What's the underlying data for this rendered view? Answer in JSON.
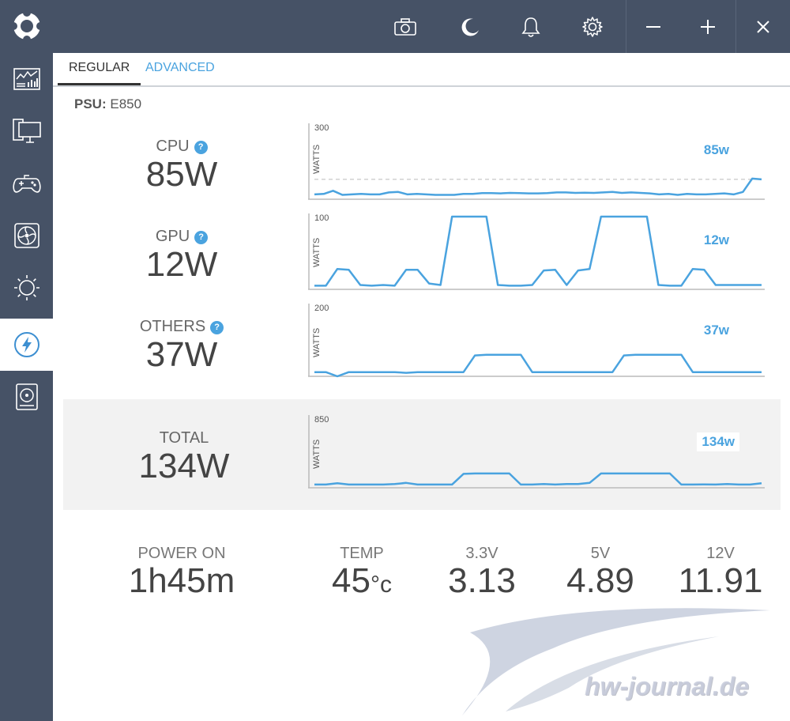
{
  "tabs": [
    {
      "label": "REGULAR",
      "active": true
    },
    {
      "label": "ADVANCED",
      "active": false
    }
  ],
  "psu": {
    "label": "PSU:",
    "model": "E850"
  },
  "metrics": [
    {
      "label": "CPU",
      "value": "85W",
      "help": "?",
      "chart_max": "300",
      "unit": "WATTS",
      "current": "85w"
    },
    {
      "label": "GPU",
      "value": "12W",
      "help": "?",
      "chart_max": "100",
      "unit": "WATTS",
      "current": "12w"
    },
    {
      "label": "OTHERS",
      "value": "37W",
      "help": "?",
      "chart_max": "200",
      "unit": "WATTS",
      "current": "37w"
    }
  ],
  "total": {
    "label": "TOTAL",
    "value": "134W",
    "chart_max": "850",
    "unit": "WATTS",
    "current": "134w"
  },
  "stats": [
    {
      "label": "POWER ON",
      "value": "1h45m"
    },
    {
      "label": "TEMP",
      "value": "45",
      "unit": "°c"
    },
    {
      "label": "3.3V",
      "value": "3.13"
    },
    {
      "label": "5V",
      "value": "4.89"
    },
    {
      "label": "12V",
      "value": "11.91"
    }
  ],
  "watermark": "hw-journal.de",
  "colors": {
    "accent": "#4aa3df",
    "sidebar": "#465266",
    "line": "#4aa3df"
  },
  "icons": {
    "top": [
      "camera-icon",
      "moon-icon",
      "bell-icon",
      "gear-icon"
    ],
    "window": [
      "minimize-icon",
      "maximize-icon",
      "close-icon"
    ],
    "sidebar": [
      "dashboard-icon",
      "monitor-icon",
      "gamepad-icon",
      "fan-icon",
      "brightness-icon",
      "power-icon",
      "storage-icon"
    ]
  },
  "chart_data": [
    {
      "type": "line",
      "name": "CPU",
      "ylim": [
        0,
        300
      ],
      "ylabel": "WATTS",
      "values": [
        20,
        22,
        35,
        18,
        20,
        22,
        20,
        20,
        28,
        30,
        20,
        22,
        20,
        18,
        18,
        18,
        22,
        22,
        25,
        25,
        24,
        26,
        25,
        24,
        24,
        25,
        28,
        28,
        26,
        27,
        26,
        28,
        30,
        26,
        28,
        26,
        24,
        20,
        22,
        18,
        22,
        20,
        20,
        22,
        24,
        20,
        30,
        85,
        82
      ]
    },
    {
      "type": "line",
      "name": "GPU",
      "ylim": [
        0,
        100
      ],
      "ylabel": "WATTS",
      "values": [
        5,
        5,
        28,
        27,
        6,
        5,
        6,
        5,
        27,
        27,
        8,
        6,
        100,
        100,
        100,
        100,
        6,
        5,
        5,
        6,
        26,
        27,
        6,
        26,
        28,
        100,
        100,
        100,
        100,
        100,
        6,
        5,
        5,
        28,
        27,
        6,
        6,
        6,
        6,
        6
      ]
    },
    {
      "type": "line",
      "name": "OTHERS",
      "ylim": [
        0,
        200
      ],
      "ylabel": "WATTS",
      "values": [
        12,
        12,
        0,
        12,
        12,
        12,
        12,
        12,
        10,
        12,
        12,
        12,
        12,
        12,
        60,
        62,
        62,
        62,
        62,
        12,
        12,
        12,
        12,
        12,
        12,
        12,
        12,
        60,
        62,
        62,
        62,
        62,
        62,
        12,
        12,
        12,
        12,
        12,
        12,
        12
      ]
    },
    {
      "type": "line",
      "name": "TOTAL",
      "ylim": [
        0,
        850
      ],
      "ylabel": "WATTS",
      "values": [
        40,
        40,
        55,
        40,
        40,
        40,
        40,
        45,
        60,
        40,
        40,
        40,
        40,
        170,
        175,
        175,
        175,
        175,
        40,
        40,
        45,
        40,
        45,
        45,
        60,
        175,
        175,
        175,
        175,
        175,
        175,
        175,
        40,
        40,
        42,
        40,
        45,
        40,
        40,
        55
      ]
    }
  ]
}
